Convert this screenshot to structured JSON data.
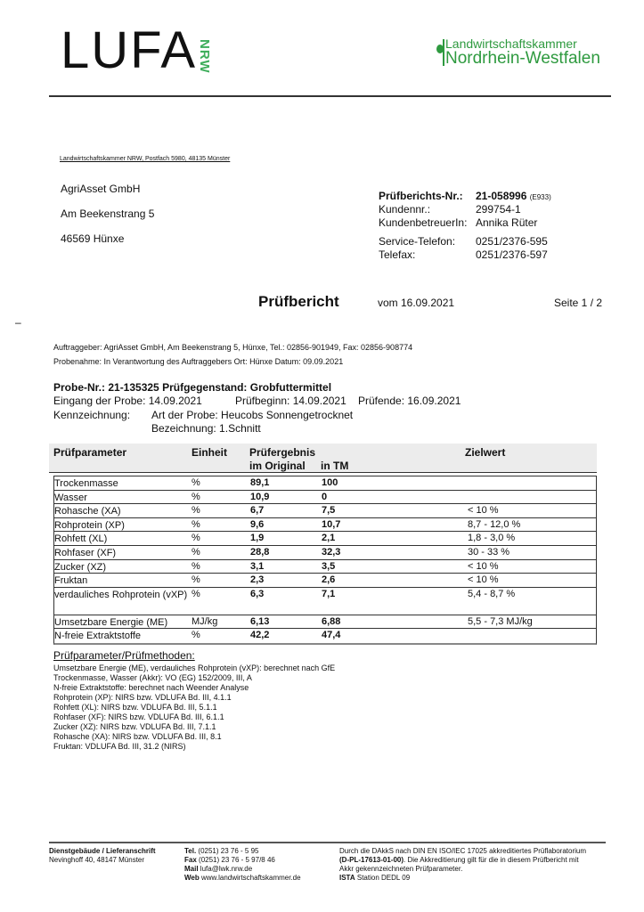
{
  "header": {
    "logo_left": "LUFA",
    "logo_left_sub": "NRW",
    "logo_right_line1": "Landwirtschaftskammer",
    "logo_right_line2": "Nordrhein-Westfalen",
    "brand_color": "#3fae5c"
  },
  "sender_line": "Landwirtschaftskammer NRW, Postfach 5980, 48135 Münster",
  "recipient": [
    "AgriAsset GmbH",
    "Am Beekenstrang 5",
    "46569 Hünxe"
  ],
  "report_info": {
    "nr_label": "Prüfberichts-Nr.:",
    "nr_value": "21-058996",
    "nr_suffix": "(E933)",
    "kunden_label": "Kundennr.:",
    "kunden_value": "299754-1",
    "betreuer_label": "KundenbetreuerIn:",
    "betreuer_value": "Annika Rüter",
    "service_label": "Service-Telefon:",
    "service_value": "0251/2376-595",
    "fax_label": "Telefax:",
    "fax_value": "0251/2376-597"
  },
  "title": "Prüfbericht",
  "date": "vom 16.09.2021",
  "page": "Seite 1 / 2",
  "dash": "–",
  "auftraggeber": "Auftraggeber:  AgriAsset GmbH, Am Beekenstrang 5, Hünxe, Tel.: 02856-901949, Fax: 02856-908774",
  "probenahme": "Probenahme:  In Verantwortung des Auftraggebers  Ort: Hünxe  Datum: 09.09.2021",
  "probe": {
    "title": "Probe-Nr.:  21-135325   Prüfgegenstand: Grobfuttermittel",
    "eingang": "Eingang der Probe: 14.09.2021",
    "beginn": "Prüfbeginn: 14.09.2021",
    "ende": "Prüfende: 16.09.2021",
    "kenn_label": "Kennzeichnung:",
    "art": "Art der Probe: Heucobs Sonnengetrocknet",
    "bez": "Bezeichnung: 1.Schnitt"
  },
  "table": {
    "headers": {
      "param": "Prüfparameter",
      "unit": "Einheit",
      "result": "Prüfergebnis",
      "original": "im Original",
      "tm": "in TM",
      "target": "Zielwert"
    },
    "rows": [
      {
        "param": "Trockenmasse",
        "unit": "%",
        "original": "89,1",
        "tm": "100",
        "target": ""
      },
      {
        "param": "Wasser",
        "unit": "%",
        "original": "10,9",
        "tm": "0",
        "target": ""
      },
      {
        "param": "Rohasche (XA)",
        "unit": "%",
        "original": "6,7",
        "tm": "7,5",
        "target": "< 10 %"
      },
      {
        "param": "Rohprotein (XP)",
        "unit": "%",
        "original": "9,6",
        "tm": "10,7",
        "target": "8,7 - 12,0 %"
      },
      {
        "param": "Rohfett (XL)",
        "unit": "%",
        "original": "1,9",
        "tm": "2,1",
        "target": "1,8 - 3,0 %"
      },
      {
        "param": "Rohfaser (XF)",
        "unit": "%",
        "original": "28,8",
        "tm": "32,3",
        "target": "30 - 33 %"
      },
      {
        "param": "Zucker (XZ)",
        "unit": "%",
        "original": "3,1",
        "tm": "3,5",
        "target": "< 10 %"
      },
      {
        "param": "Fruktan",
        "unit": "%",
        "original": "2,3",
        "tm": "2,6",
        "target": "< 10 %"
      },
      {
        "param": "verdauliches Rohprotein (vXP)",
        "unit": "%",
        "original": "6,3",
        "tm": "7,1",
        "target": "5,4 - 8,7 %"
      },
      {
        "param": "Umsetzbare Energie (ME)",
        "unit": "MJ/kg",
        "original": "6,13",
        "tm": "6,88",
        "target": "5,5 - 7,3 MJ/kg"
      },
      {
        "param": "N-freie Extraktstoffe",
        "unit": "%",
        "original": "42,2",
        "tm": "47,4",
        "target": ""
      }
    ]
  },
  "methods": {
    "heading": "Prüfparameter/Prüfmethoden:",
    "items": [
      "Umsetzbare Energie (ME), verdauliches Rohprotein (vXP): berechnet nach GfE",
      "Trockenmasse, Wasser (Akkr): VO (EG) 152/2009, III, A",
      "N-freie Extraktstoffe: berechnet nach Weender Analyse",
      "Rohprotein (XP): NIRS bzw. VDLUFA Bd. III, 4.1.1",
      "Rohfett (XL): NIRS bzw. VDLUFA Bd. III, 5.1.1",
      "Rohfaser (XF): NIRS bzw. VDLUFA Bd. III, 6.1.1",
      "Zucker (XZ): NIRS bzw. VDLUFA Bd. III, 7.1.1",
      "Rohasche (XA): NIRS bzw. VDLUFA Bd. III, 8.1",
      "Fruktan: VDLUFA Bd. III, 31.2 (NIRS)"
    ]
  },
  "footer": {
    "addr_title": "Dienstgebäude / Lieferanschrift",
    "addr": "Nevinghoff 40, 48147 Münster",
    "contacts": [
      {
        "label": "Tel.",
        "value": "(0251) 23 76 - 5 95"
      },
      {
        "label": "Fax",
        "value": "(0251) 23 76 - 5 97/8 46"
      },
      {
        "label": "Mail",
        "value": "lufa@lwk.nrw.de"
      },
      {
        "label": "Web",
        "value": "www.landwirtschaftskammer.de"
      }
    ],
    "accr1": "Durch die DAkkS nach DIN EN ISO/IEC 17025 akkreditiertes Prüflaboratorium",
    "accr_code": "(D-PL-17613-01-00)",
    "accr2": ". Die Akkreditierung gilt für die in diesem Prüfbericht mit",
    "accr3": "Akkr gekennzeichneten Prüfparameter.",
    "ista": "ISTA",
    "ista_rest": " Station DEDL 09"
  }
}
